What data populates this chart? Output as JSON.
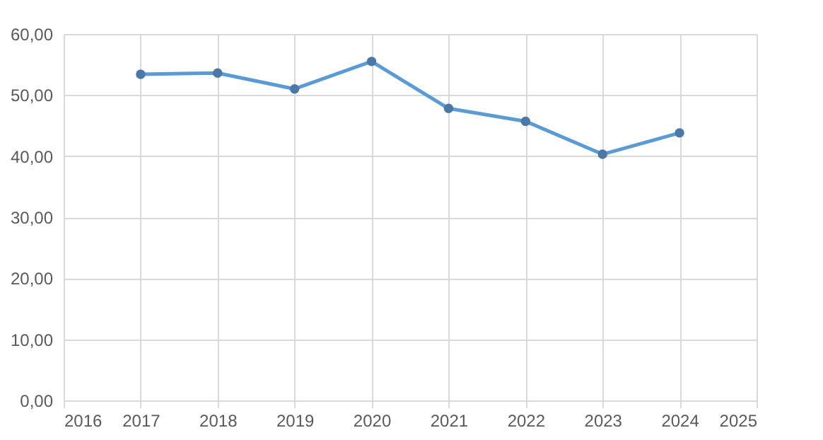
{
  "chart_data": {
    "type": "line",
    "x": [
      2017,
      2018,
      2019,
      2020,
      2021,
      2022,
      2023,
      2024
    ],
    "series": [
      {
        "color": "#5b9bd5",
        "values": [
          53.4,
          53.6,
          51.0,
          55.5,
          47.8,
          45.7,
          40.3,
          43.8
        ]
      }
    ],
    "xlim": [
      2016,
      2025
    ],
    "xticks": [
      2016,
      2017,
      2018,
      2019,
      2020,
      2021,
      2022,
      2023,
      2024,
      2025
    ],
    "ylim": [
      0,
      60
    ],
    "yticks": [
      {
        "value": 0,
        "label": "0,00"
      },
      {
        "value": 10,
        "label": "10,00"
      },
      {
        "value": 20,
        "label": "20,00"
      },
      {
        "value": 30,
        "label": "30,00"
      },
      {
        "value": 40,
        "label": "40,00"
      },
      {
        "value": 50,
        "label": "50,00"
      },
      {
        "value": 60,
        "label": "60,00"
      }
    ],
    "grid": true,
    "marker": "circle",
    "line_style": "solid"
  }
}
